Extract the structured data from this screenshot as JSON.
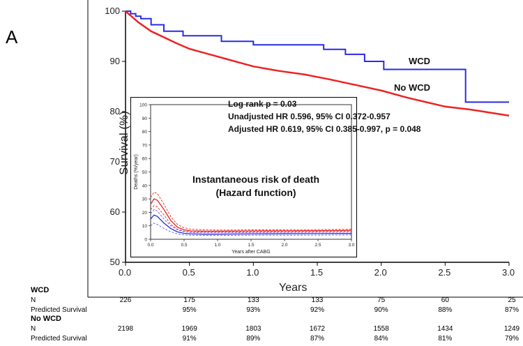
{
  "panel_label": "A",
  "chart_data": {
    "type": "line",
    "title": "",
    "xlabel": "Years",
    "ylabel": "Survival (%)",
    "xlim": [
      0.0,
      3.0
    ],
    "ylim": [
      50,
      100
    ],
    "x_ticks": [
      "0.0",
      "0.5",
      "1.0",
      "1.5",
      "2.0",
      "2.5",
      "3.0"
    ],
    "y_ticks": [
      "50",
      "60",
      "70",
      "80",
      "90",
      "100"
    ],
    "series": [
      {
        "name": "WCD",
        "color": "#2a2ae8",
        "step": true,
        "x": [
          0,
          0.04,
          0.08,
          0.12,
          0.2,
          0.3,
          0.45,
          0.75,
          1.0,
          1.3,
          1.55,
          1.65,
          1.72,
          1.8,
          1.87,
          1.95,
          2.02,
          2.15,
          2.45,
          2.63,
          2.66,
          3.0
        ],
        "y": [
          100,
          99.5,
          99.0,
          98.5,
          97.3,
          96.0,
          95.1,
          94.0,
          93.3,
          93.3,
          92.4,
          92.4,
          91.4,
          91.4,
          90.0,
          90.0,
          88.4,
          88.4,
          88.4,
          88.4,
          81.9,
          81.9
        ]
      },
      {
        "name": "No WCD",
        "color": "#ee2222",
        "step": false,
        "x": [
          0,
          0.05,
          0.1,
          0.15,
          0.2,
          0.3,
          0.4,
          0.5,
          0.6,
          0.7,
          0.8,
          0.9,
          1.0,
          1.2,
          1.4,
          1.5,
          1.6,
          1.8,
          2.0,
          2.2,
          2.4,
          2.5,
          2.7,
          2.9,
          3.0
        ],
        "y": [
          100,
          98.9,
          97.8,
          96.9,
          96.0,
          94.8,
          93.6,
          92.5,
          91.8,
          91.1,
          90.4,
          89.7,
          89.0,
          88.1,
          87.4,
          86.9,
          86.4,
          85.3,
          84.2,
          82.8,
          81.6,
          81.0,
          80.4,
          79.6,
          79.2
        ]
      }
    ],
    "annotations": [
      "WCD",
      "No WCD"
    ],
    "inset": {
      "type": "line",
      "title": "Instantaneous risk of death",
      "subtitle": "(Hazard function)",
      "xlabel": "Years after CABG",
      "ylabel": "Deaths (%/year)",
      "xlim": [
        0,
        3
      ],
      "ylim": [
        0,
        100
      ],
      "x_ticks": [
        "0.0",
        "0.5",
        "1.0",
        "1.5",
        "2.0",
        "2.5",
        "3.0"
      ],
      "y_ticks": [
        "0",
        "10",
        "20",
        "30",
        "40",
        "50",
        "60",
        "70",
        "80",
        "90",
        "100"
      ],
      "series": [
        {
          "name": "No WCD",
          "color": "#ee2222",
          "dashed": false,
          "x": [
            0,
            0.05,
            0.1,
            0.2,
            0.3,
            0.4,
            0.5,
            0.6,
            0.8,
            1.0,
            1.5,
            2.0,
            2.5,
            3.0
          ],
          "y": [
            26,
            30,
            29,
            22,
            14,
            9,
            7,
            6.3,
            6.0,
            6.0,
            6.2,
            6.3,
            6.4,
            6.6
          ]
        },
        {
          "name": "No WCD upper CI",
          "color": "#ee2222",
          "dashed": true,
          "x": [
            0,
            0.05,
            0.1,
            0.2,
            0.3,
            0.4,
            0.5,
            0.6,
            0.8,
            1.0,
            1.5,
            2.0,
            2.5,
            3.0
          ],
          "y": [
            31,
            35,
            34,
            26,
            17,
            11,
            8.5,
            7.5,
            7.0,
            6.8,
            7.0,
            7.0,
            7.2,
            7.4
          ]
        },
        {
          "name": "No WCD lower CI",
          "color": "#ee2222",
          "dashed": true,
          "x": [
            0,
            0.05,
            0.1,
            0.2,
            0.3,
            0.4,
            0.5,
            0.6,
            0.8,
            1.0,
            1.5,
            2.0,
            2.5,
            3.0
          ],
          "y": [
            22,
            25,
            24,
            18,
            11,
            7.5,
            6.0,
            5.5,
            5.3,
            5.3,
            5.5,
            5.6,
            5.7,
            5.9
          ]
        },
        {
          "name": "WCD",
          "color": "#2a2ae8",
          "dashed": false,
          "x": [
            0,
            0.05,
            0.1,
            0.2,
            0.3,
            0.4,
            0.5,
            0.6,
            0.8,
            1.0,
            1.5,
            2.0,
            2.5,
            3.0
          ],
          "y": [
            15,
            18,
            17,
            12,
            8,
            5.5,
            4.4,
            4.0,
            3.8,
            3.8,
            4.0,
            4.1,
            4.2,
            4.3
          ]
        },
        {
          "name": "WCD upper CI",
          "color": "#5c5cf0",
          "dashed": true,
          "x": [
            0,
            0.05,
            0.1,
            0.2,
            0.3,
            0.4,
            0.5,
            0.6,
            0.8,
            1.0,
            1.5,
            2.0,
            2.5,
            3.0
          ],
          "y": [
            19,
            22,
            21,
            15,
            10,
            7,
            5.6,
            5.0,
            4.8,
            4.8,
            5.0,
            5.1,
            5.2,
            5.3
          ]
        },
        {
          "name": "WCD lower CI",
          "color": "#5c5cf0",
          "dashed": true,
          "x": [
            0,
            0.05,
            0.1,
            0.2,
            0.3,
            0.4,
            0.5,
            0.6,
            0.8,
            1.0,
            1.5,
            2.0,
            2.5,
            3.0
          ],
          "y": [
            10,
            12,
            11,
            8,
            5.5,
            4.0,
            3.2,
            3.0,
            2.8,
            2.8,
            3.0,
            3.0,
            3.1,
            3.2
          ]
        }
      ]
    },
    "stats": [
      "Log rank p = 0.03",
      "Unadjusted HR 0.596, 95% CI 0.372-0.957",
      "Adjusted HR 0.619, 95% CI 0.385-0.997, p = 0.048"
    ]
  },
  "risk_table": {
    "groups": [
      {
        "name": "WCD",
        "n_label": "N",
        "n_values": [
          "226",
          "175",
          "133",
          "133",
          "75",
          "60",
          "25"
        ],
        "ps_label": "Predicted Survival",
        "ps_values": [
          "95%",
          "93%",
          "92%",
          "90%",
          "88%",
          "87%"
        ]
      },
      {
        "name": "No WCD",
        "n_label": "N",
        "n_values": [
          "2198",
          "1969",
          "1803",
          "1672",
          "1558",
          "1434",
          "1249"
        ],
        "ps_label": "Predicted Survival",
        "ps_values": [
          "91%",
          "89%",
          "87%",
          "84%",
          "81%",
          "79%"
        ]
      }
    ]
  }
}
